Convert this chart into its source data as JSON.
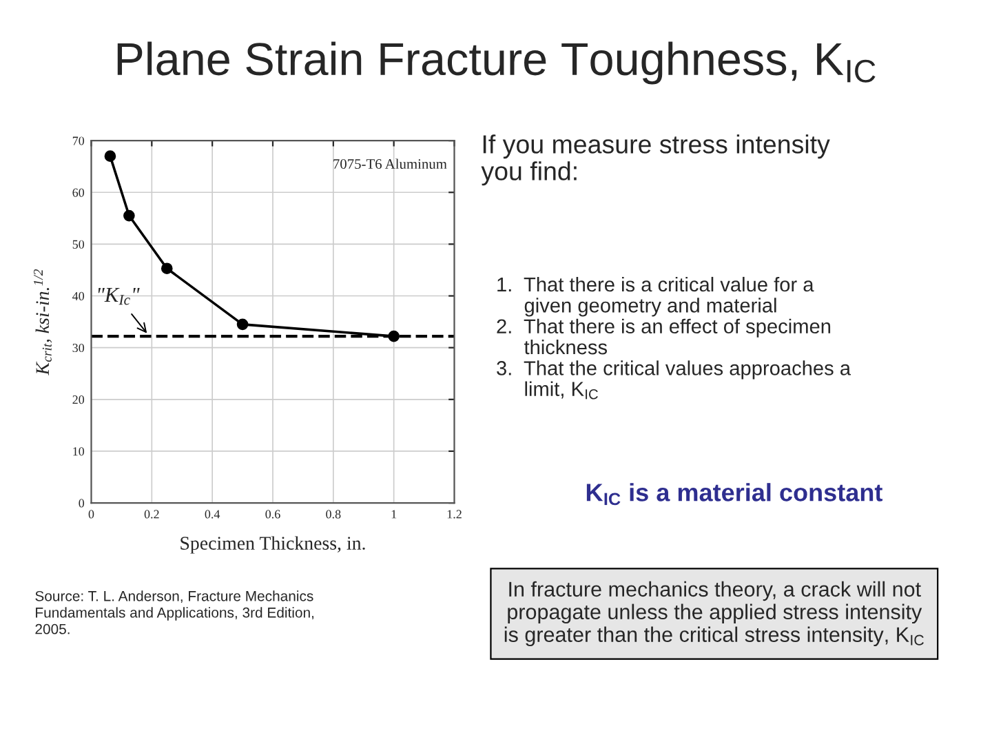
{
  "chart_data": {
    "type": "line",
    "title": "Plane Strain Fracture Toughness, K$_{IC}$",
    "xlabel": "Specimen Thickness, in.",
    "ylabel": "K$_{crit}$, ksi-in.$^{1/2}$",
    "x": [
      0.0625,
      0.125,
      0.25,
      0.5,
      1.0
    ],
    "series": [
      {
        "color": "#000000",
        "values": [
          67,
          55.5,
          45.3,
          34.5,
          32.2
        ]
      }
    ],
    "marker": "circle",
    "line_style": "solid",
    "xlim": [
      0,
      1.2
    ],
    "xticks": [
      0,
      0.2,
      0.4,
      0.6,
      0.8,
      1,
      1.2
    ],
    "ylim": [
      0,
      70
    ],
    "yticks": [
      0,
      10,
      20,
      30,
      40,
      50,
      60,
      70
    ],
    "grid": true,
    "ref_lines": [
      {
        "axis": "y",
        "value": 32.2,
        "label": "\"K$_{Ic}$\"",
        "color": "#000000",
        "line_style": "dashed"
      }
    ],
    "annotations": [
      "7075-T6 Aluminum",
      "If you measure stress intensity\nyou find:",
      "1.  That there is a critical value for a\n     given geometry and material\n2.  That there is an effect of specimen\n     thickness\n3.  That the critical values approaches a\n     limit, K$_{IC}$",
      "K$_{IC}$ is a material constant",
      "In fracture mechanics theory, a crack will not\npropagate unless the applied stress intensity\nis greater than the critical stress intensity, K$_{IC}$",
      "Source: T. L. Anderson, Fracture Mechanics\nFundamentals and Applications, 3rd Edition,\n2005."
    ]
  }
}
